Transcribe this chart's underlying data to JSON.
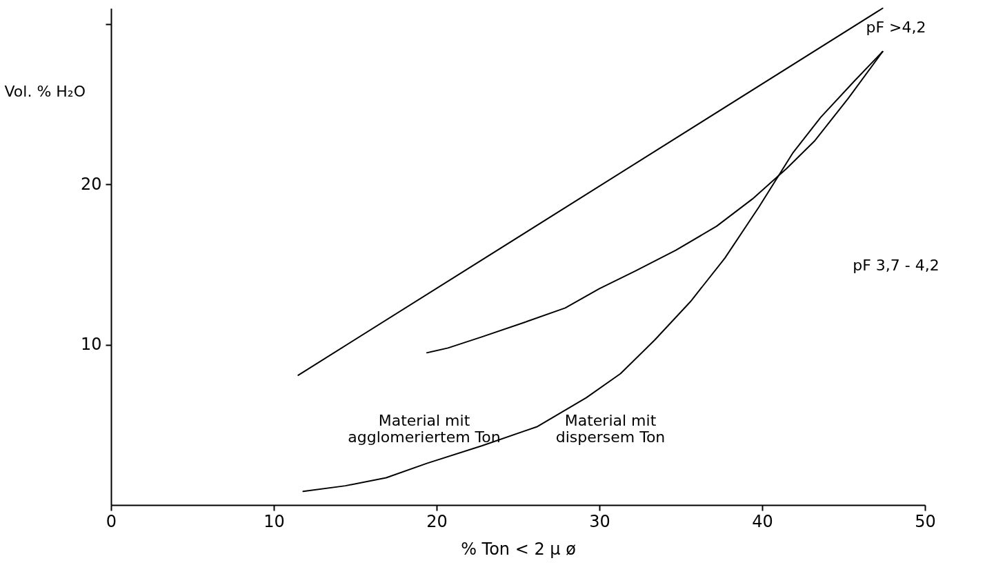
{
  "chart_data": {
    "type": "line",
    "xlabel": "% Ton < 2 μ ø",
    "ylabel": "Vol. % H₂O",
    "xlim": [
      0,
      50
    ],
    "xticks": [
      0,
      10,
      20,
      30,
      40,
      50
    ],
    "ylim": [
      0,
      31
    ],
    "yticks": [
      10,
      20,
      {
        "value": 30,
        "label": null
      }
    ],
    "grid": false,
    "marker": "none",
    "line_style": "solid",
    "series": [
      {
        "color": "#000000",
        "x": [
          11.5,
          47.4
        ],
        "values": [
          8.1,
          31.0
        ]
      },
      {
        "color": "#000000",
        "x": [
          19.4,
          20.7,
          22.8,
          25.4,
          27.9,
          30.0,
          32.2,
          34.7,
          37.2,
          39.4,
          41.5,
          43.2,
          45.3,
          47.4
        ],
        "values": [
          9.5,
          9.8,
          10.5,
          11.4,
          12.3,
          13.5,
          14.6,
          15.9,
          17.4,
          19.1,
          21.0,
          22.7,
          25.4,
          28.3
        ]
      },
      {
        "color": "#000000",
        "x": [
          11.8,
          14.4,
          16.9,
          19.4,
          22.8,
          26.2,
          29.2,
          31.3,
          33.4,
          35.6,
          37.7,
          39.8,
          41.9,
          43.6,
          45.7,
          47.4
        ],
        "values": [
          0.85,
          1.2,
          1.7,
          2.6,
          3.7,
          4.9,
          6.7,
          8.2,
          10.3,
          12.7,
          15.4,
          18.6,
          22.0,
          24.2,
          26.5,
          28.3
        ]
      }
    ],
    "annotations": [
      "pF >4,2",
      "pF 3,7 - 4,2",
      "Material mit agglomeriertem Ton",
      "Material mit dispersem Ton"
    ]
  }
}
